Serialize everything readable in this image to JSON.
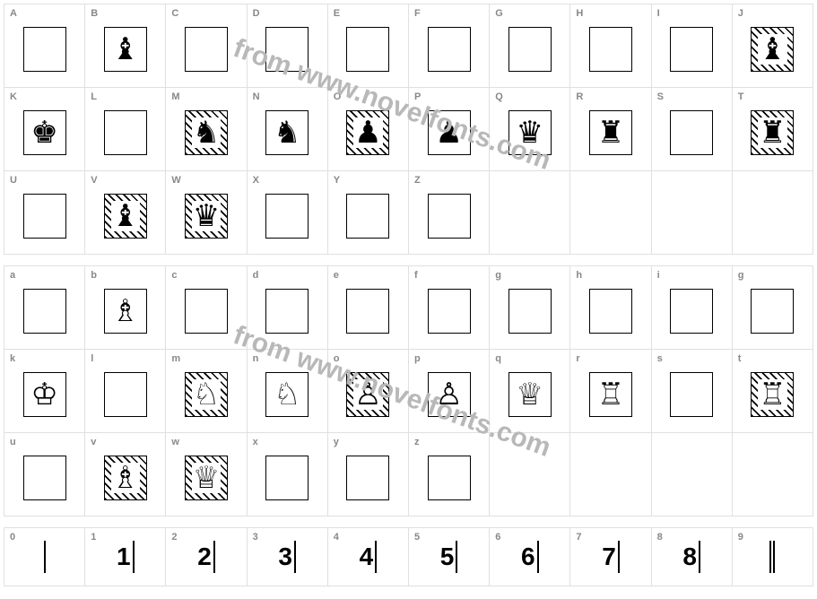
{
  "watermark_text": "from www.novelfonts.com",
  "watermark_color": "#b8b8b8",
  "border_color": "#e0e0e0",
  "box_border": "#000000",
  "label_color": "#888888",
  "upper": [
    {
      "label": "A",
      "glyph": "",
      "hatched": false
    },
    {
      "label": "B",
      "glyph": "♝",
      "hatched": false,
      "filled": true
    },
    {
      "label": "C",
      "glyph": "",
      "hatched": false
    },
    {
      "label": "D",
      "glyph": "",
      "hatched": false
    },
    {
      "label": "E",
      "glyph": "",
      "hatched": false
    },
    {
      "label": "F",
      "glyph": "",
      "hatched": false
    },
    {
      "label": "G",
      "glyph": "",
      "hatched": false
    },
    {
      "label": "H",
      "glyph": "",
      "hatched": false
    },
    {
      "label": "I",
      "glyph": "",
      "hatched": false
    },
    {
      "label": "J",
      "glyph": "♝",
      "hatched": true,
      "filled": true
    },
    {
      "label": "K",
      "glyph": "♚",
      "hatched": false,
      "filled": true
    },
    {
      "label": "L",
      "glyph": "",
      "hatched": false
    },
    {
      "label": "M",
      "glyph": "♞",
      "hatched": true,
      "filled": true
    },
    {
      "label": "N",
      "glyph": "♞",
      "hatched": false,
      "filled": true
    },
    {
      "label": "O",
      "glyph": "♟",
      "hatched": true,
      "filled": true
    },
    {
      "label": "P",
      "glyph": "♟",
      "hatched": false,
      "filled": true
    },
    {
      "label": "Q",
      "glyph": "♛",
      "hatched": false,
      "filled": true
    },
    {
      "label": "R",
      "glyph": "♜",
      "hatched": false,
      "filled": true
    },
    {
      "label": "S",
      "glyph": "",
      "hatched": false
    },
    {
      "label": "T",
      "glyph": "♜",
      "hatched": true,
      "filled": true
    },
    {
      "label": "U",
      "glyph": "",
      "hatched": false
    },
    {
      "label": "V",
      "glyph": "♝",
      "hatched": true,
      "filled": true
    },
    {
      "label": "W",
      "glyph": "♛",
      "hatched": true,
      "filled": true
    },
    {
      "label": "X",
      "glyph": "",
      "hatched": false
    },
    {
      "label": "Y",
      "glyph": "",
      "hatched": false
    },
    {
      "label": "Z",
      "glyph": "",
      "hatched": false
    }
  ],
  "lower": [
    {
      "label": "a",
      "glyph": "",
      "hatched": false
    },
    {
      "label": "b",
      "glyph": "♗",
      "hatched": false
    },
    {
      "label": "c",
      "glyph": "",
      "hatched": false
    },
    {
      "label": "d",
      "glyph": "",
      "hatched": false
    },
    {
      "label": "e",
      "glyph": "",
      "hatched": false
    },
    {
      "label": "f",
      "glyph": "",
      "hatched": false
    },
    {
      "label": "g",
      "glyph": "",
      "hatched": false
    },
    {
      "label": "h",
      "glyph": "",
      "hatched": false
    },
    {
      "label": "i",
      "glyph": "",
      "hatched": false
    },
    {
      "label": "g",
      "glyph": "",
      "hatched": false
    },
    {
      "label": "k",
      "glyph": "♔",
      "hatched": false
    },
    {
      "label": "l",
      "glyph": "",
      "hatched": false
    },
    {
      "label": "m",
      "glyph": "♘",
      "hatched": true
    },
    {
      "label": "n",
      "glyph": "♘",
      "hatched": false
    },
    {
      "label": "o",
      "glyph": "♙",
      "hatched": true
    },
    {
      "label": "p",
      "glyph": "♙",
      "hatched": false
    },
    {
      "label": "q",
      "glyph": "♕",
      "hatched": false
    },
    {
      "label": "r",
      "glyph": "♖",
      "hatched": false
    },
    {
      "label": "s",
      "glyph": "",
      "hatched": false
    },
    {
      "label": "t",
      "glyph": "♖",
      "hatched": true
    },
    {
      "label": "u",
      "glyph": "",
      "hatched": false
    },
    {
      "label": "v",
      "glyph": "♗",
      "hatched": true
    },
    {
      "label": "w",
      "glyph": "♕",
      "hatched": true
    },
    {
      "label": "x",
      "glyph": "",
      "hatched": false
    },
    {
      "label": "y",
      "glyph": "",
      "hatched": false
    },
    {
      "label": "z",
      "glyph": "",
      "hatched": false
    }
  ],
  "numbers": [
    {
      "label": "0",
      "glyph": "",
      "bars": 1
    },
    {
      "label": "1",
      "glyph": "1",
      "bars": 1
    },
    {
      "label": "2",
      "glyph": "2",
      "bars": 1
    },
    {
      "label": "3",
      "glyph": "3",
      "bars": 1
    },
    {
      "label": "4",
      "glyph": "4",
      "bars": 1
    },
    {
      "label": "5",
      "glyph": "5",
      "bars": 1
    },
    {
      "label": "6",
      "glyph": "6",
      "bars": 1
    },
    {
      "label": "7",
      "glyph": "7",
      "bars": 1
    },
    {
      "label": "8",
      "glyph": "8",
      "bars": 1
    },
    {
      "label": "9",
      "glyph": "",
      "bars": 2
    }
  ]
}
